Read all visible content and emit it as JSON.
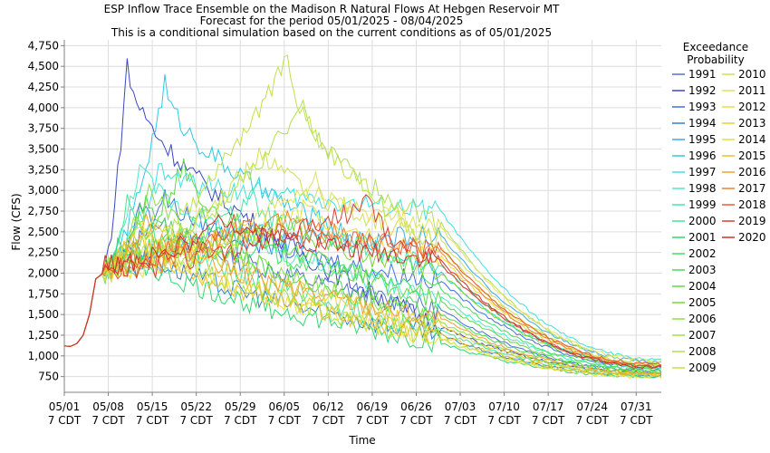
{
  "chart_data": {
    "type": "line",
    "title_lines": [
      "ESP Inflow Trace Ensemble on the Madison R Natural Flows At Hebgen Reservoir MT",
      "Forecast for the period 05/01/2025 - 08/04/2025",
      "This is a conditional simulation based on the current conditions as of 05/01/2025"
    ],
    "xlabel": "Time",
    "ylabel": "Flow (CFS)",
    "ylim": [
      560,
      4820
    ],
    "xlim_days": [
      0,
      95
    ],
    "y_ticks": [
      750,
      1000,
      1250,
      1500,
      1750,
      2000,
      2250,
      2500,
      2750,
      3000,
      3250,
      3500,
      3750,
      4000,
      4250,
      4500,
      4750
    ],
    "y_tick_labels": [
      "750",
      "1,000",
      "1,250",
      "1,500",
      "1,750",
      "2,000",
      "2,250",
      "2,500",
      "2,750",
      "3,000",
      "3,250",
      "3,500",
      "3,750",
      "4,000",
      "4,250",
      "4,500",
      "4,750"
    ],
    "x_ticks": [
      {
        "date": "05/01",
        "sub": "7 CDT",
        "day": 0
      },
      {
        "date": "05/08",
        "sub": "7 CDT",
        "day": 7
      },
      {
        "date": "05/15",
        "sub": "7 CDT",
        "day": 14
      },
      {
        "date": "05/22",
        "sub": "7 CDT",
        "day": 21
      },
      {
        "date": "05/29",
        "sub": "7 CDT",
        "day": 28
      },
      {
        "date": "06/05",
        "sub": "7 CDT",
        "day": 35
      },
      {
        "date": "06/12",
        "sub": "7 CDT",
        "day": 42
      },
      {
        "date": "06/19",
        "sub": "7 CDT",
        "day": 49
      },
      {
        "date": "06/26",
        "sub": "7 CDT",
        "day": 56
      },
      {
        "date": "07/03",
        "sub": "7 CDT",
        "day": 63
      },
      {
        "date": "07/10",
        "sub": "7 CDT",
        "day": 70
      },
      {
        "date": "07/17",
        "sub": "7 CDT",
        "day": 77
      },
      {
        "date": "07/24",
        "sub": "7 CDT",
        "day": 84
      },
      {
        "date": "07/31",
        "sub": "7 CDT",
        "day": 91
      }
    ],
    "grid": true,
    "legend": {
      "title_lines": [
        "Exceedance",
        "Probability"
      ],
      "placement": "right"
    },
    "common_start": [
      [
        0,
        1120
      ],
      [
        1,
        1115
      ],
      [
        2,
        1150
      ],
      [
        3,
        1250
      ],
      [
        4,
        1500
      ],
      [
        5,
        1930
      ],
      [
        6,
        1990
      ]
    ],
    "series": [
      {
        "name": "1991",
        "color": "#5070cc",
        "peak_day": 12.5,
        "peak": 2850,
        "mid": 1550,
        "end": 820
      },
      {
        "name": "1992",
        "color": "#3a48c0",
        "peak_day": 10,
        "peak": 4550,
        "mid": 1350,
        "end": 800
      },
      {
        "name": "1993",
        "color": "#3f70dd",
        "peak_day": 16,
        "peak": 2950,
        "mid": 1900,
        "end": 860
      },
      {
        "name": "1994",
        "color": "#3080d0",
        "peak_day": 11,
        "peak": 2450,
        "mid": 1250,
        "end": 760
      },
      {
        "name": "1995",
        "color": "#40a8e8",
        "peak_day": 33,
        "peak": 2350,
        "mid": 2450,
        "end": 930
      },
      {
        "name": "1996",
        "color": "#30c8e0",
        "peak_day": 16,
        "peak": 4300,
        "mid": 2000,
        "end": 880
      },
      {
        "name": "1997",
        "color": "#40e0e0",
        "peak_day": 15,
        "peak": 3250,
        "mid": 2750,
        "end": 960
      },
      {
        "name": "1998",
        "color": "#50e8c8",
        "peak_day": 12,
        "peak": 3350,
        "mid": 1700,
        "end": 840
      },
      {
        "name": "1999",
        "color": "#40e8a8",
        "peak_day": 30,
        "peak": 2900,
        "mid": 2100,
        "end": 870
      },
      {
        "name": "2000",
        "color": "#40e890",
        "peak_day": 10,
        "peak": 2900,
        "mid": 1300,
        "end": 780
      },
      {
        "name": "2001",
        "color": "#30d870",
        "peak_day": 9,
        "peak": 2400,
        "mid": 1150,
        "end": 750
      },
      {
        "name": "2002",
        "color": "#40e060",
        "peak_day": 22,
        "peak": 2700,
        "mid": 1800,
        "end": 830
      },
      {
        "name": "2003",
        "color": "#50d850",
        "peak_day": 13,
        "peak": 2950,
        "mid": 1500,
        "end": 800
      },
      {
        "name": "2004",
        "color": "#60d840",
        "peak_day": 19,
        "peak": 3300,
        "mid": 1650,
        "end": 810
      },
      {
        "name": "2005",
        "color": "#78d830",
        "peak_day": 37,
        "peak": 2650,
        "mid": 2000,
        "end": 860
      },
      {
        "name": "2006",
        "color": "#88e040",
        "peak_day": 14,
        "peak": 3050,
        "mid": 1400,
        "end": 790
      },
      {
        "name": "2007",
        "color": "#a0e040",
        "peak_day": 11,
        "peak": 2700,
        "mid": 1200,
        "end": 760
      },
      {
        "name": "2008",
        "color": "#b0e050",
        "peak_day": 38,
        "peak": 4000,
        "mid": 2600,
        "end": 920
      },
      {
        "name": "2009",
        "color": "#c0e048",
        "peak_day": 35.5,
        "peak": 4600,
        "mid": 2300,
        "end": 900
      },
      {
        "name": "2010",
        "color": "#d0e050",
        "peak_day": 32,
        "peak": 3500,
        "mid": 2400,
        "end": 880
      },
      {
        "name": "2011",
        "color": "#e0e060",
        "peak_day": 40,
        "peak": 3100,
        "mid": 2550,
        "end": 950
      },
      {
        "name": "2012",
        "color": "#e8e040",
        "peak_day": 12,
        "peak": 2600,
        "mid": 1200,
        "end": 740
      },
      {
        "name": "2013",
        "color": "#e8d030",
        "peak_day": 15,
        "peak": 2700,
        "mid": 1350,
        "end": 780
      },
      {
        "name": "2014",
        "color": "#e0e040",
        "peak_day": 39,
        "peak": 2800,
        "mid": 2200,
        "end": 890
      },
      {
        "name": "2015",
        "color": "#e8c030",
        "peak_day": 11,
        "peak": 2500,
        "mid": 1250,
        "end": 770
      },
      {
        "name": "2016",
        "color": "#f0a030",
        "peak_day": 13,
        "peak": 2600,
        "mid": 1450,
        "end": 790
      },
      {
        "name": "2017",
        "color": "#f08030",
        "peak_day": 36,
        "peak": 2700,
        "mid": 2250,
        "end": 880
      },
      {
        "name": "2018",
        "color": "#e85a30",
        "peak_day": 27,
        "peak": 2600,
        "mid": 2300,
        "end": 900
      },
      {
        "name": "2019",
        "color": "#d84030",
        "peak_day": 49,
        "peak": 2850,
        "mid": 2100,
        "end": 870
      },
      {
        "name": "2020",
        "color": "#cc3030",
        "peak_day": 26,
        "peak": 2650,
        "mid": 2150,
        "end": 860
      }
    ]
  }
}
